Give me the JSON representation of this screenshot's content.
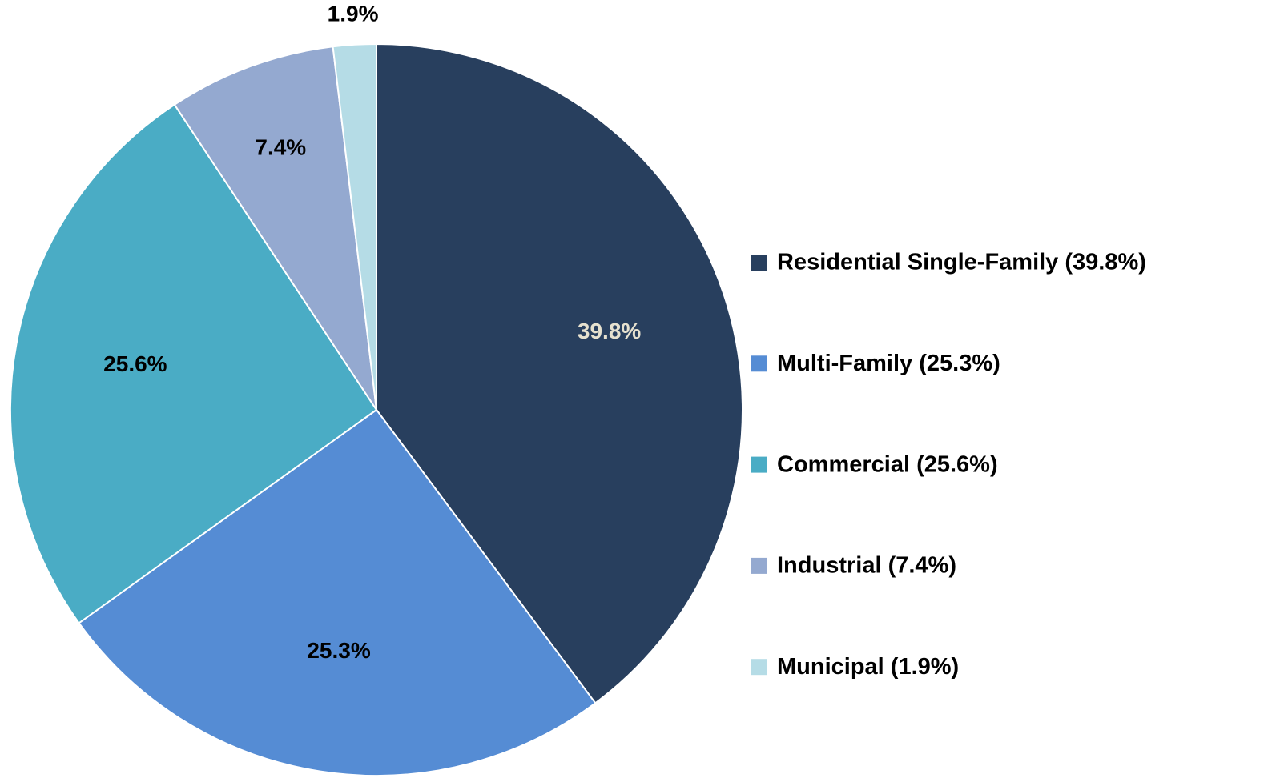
{
  "chart_data": {
    "type": "pie",
    "categories": [
      "Residential Single-Family (39.8%)",
      "Multi-Family (25.3%)",
      "Commercial (25.6%)",
      "Industrial (7.4%)",
      "Municipal (1.9%)"
    ],
    "values": [
      39.8,
      25.3,
      25.6,
      7.4,
      1.9
    ],
    "value_labels": [
      "39.8%",
      "25.3%",
      "25.6%",
      "7.4%",
      "1.9%"
    ],
    "colors": [
      "#283f5e",
      "#558cd4",
      "#4aacc5",
      "#94a9d0",
      "#b5dce6"
    ],
    "legend": "right"
  }
}
